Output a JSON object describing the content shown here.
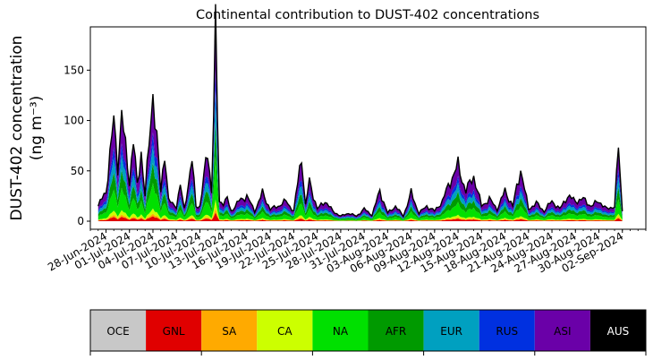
{
  "chart_data": {
    "type": "area",
    "title": "Continental contribution to DUST-402 concentrations",
    "ylabel_line1": "DUST-402 concentration",
    "ylabel_line2": "(ng m⁻³)",
    "xlabel": "",
    "x_start": "2024-06-27",
    "x_end": "2024-09-02",
    "xlim": [
      "2024-06-26",
      "2024-09-05"
    ],
    "ylim": [
      -8,
      193
    ],
    "yticks": [
      0,
      50,
      100,
      150
    ],
    "xtick_labels": [
      "28-Jun-2024",
      "01-Jul-2024",
      "04-Jul-2024",
      "07-Jul-2024",
      "10-Jul-2024",
      "13-Jul-2024",
      "16-Jul-2024",
      "19-Jul-2024",
      "22-Jul-2024",
      "25-Jul-2024",
      "28-Jul-2024",
      "31-Jul-2024",
      "03-Aug-2024",
      "06-Aug-2024",
      "09-Aug-2024",
      "12-Aug-2024",
      "15-Aug-2024",
      "18-Aug-2024",
      "21-Aug-2024",
      "24-Aug-2024",
      "27-Aug-2024",
      "30-Aug-2024",
      "02-Sep-2024"
    ],
    "total_profile": [
      [
        "2024-06-27",
        15
      ],
      [
        "2024-06-28",
        30
      ],
      [
        "2024-06-29",
        100
      ],
      [
        "2024-06-29T12",
        55
      ],
      [
        "2024-06-30",
        105
      ],
      [
        "2024-07-01",
        40
      ],
      [
        "2024-07-01T12",
        80
      ],
      [
        "2024-07-02",
        35
      ],
      [
        "2024-07-02T12",
        70
      ],
      [
        "2024-07-03",
        25
      ],
      [
        "2024-07-04",
        130
      ],
      [
        "2024-07-05",
        30
      ],
      [
        "2024-07-05T12",
        70
      ],
      [
        "2024-07-06",
        20
      ],
      [
        "2024-07-07",
        15
      ],
      [
        "2024-07-07T12",
        35
      ],
      [
        "2024-07-08",
        12
      ],
      [
        "2024-07-09",
        60
      ],
      [
        "2024-07-09T12",
        15
      ],
      [
        "2024-07-10",
        15
      ],
      [
        "2024-07-11",
        70
      ],
      [
        "2024-07-11T12",
        30
      ],
      [
        "2024-07-12",
        183
      ],
      [
        "2024-07-12T12",
        20
      ],
      [
        "2024-07-13",
        18
      ],
      [
        "2024-07-13T12",
        22
      ],
      [
        "2024-07-14",
        10
      ],
      [
        "2024-07-15",
        20
      ],
      [
        "2024-07-16",
        25
      ],
      [
        "2024-07-17",
        10
      ],
      [
        "2024-07-18",
        28
      ],
      [
        "2024-07-19",
        12
      ],
      [
        "2024-07-20",
        15
      ],
      [
        "2024-07-21",
        20
      ],
      [
        "2024-07-22",
        10
      ],
      [
        "2024-07-23",
        66
      ],
      [
        "2024-07-23T12",
        15
      ],
      [
        "2024-07-24",
        40
      ],
      [
        "2024-07-25",
        12
      ],
      [
        "2024-07-26",
        20
      ],
      [
        "2024-07-27",
        10
      ],
      [
        "2024-07-28",
        5
      ],
      [
        "2024-07-29",
        8
      ],
      [
        "2024-07-30",
        5
      ],
      [
        "2024-07-31",
        12
      ],
      [
        "2024-08-01",
        6
      ],
      [
        "2024-08-02",
        30
      ],
      [
        "2024-08-03",
        8
      ],
      [
        "2024-08-04",
        15
      ],
      [
        "2024-08-05",
        5
      ],
      [
        "2024-08-06",
        28
      ],
      [
        "2024-08-07",
        8
      ],
      [
        "2024-08-08",
        15
      ],
      [
        "2024-08-09",
        10
      ],
      [
        "2024-08-10",
        20
      ],
      [
        "2024-08-11",
        40
      ],
      [
        "2024-08-12",
        55
      ],
      [
        "2024-08-13",
        30
      ],
      [
        "2024-08-14",
        45
      ],
      [
        "2024-08-15",
        15
      ],
      [
        "2024-08-16",
        22
      ],
      [
        "2024-08-17",
        12
      ],
      [
        "2024-08-18",
        30
      ],
      [
        "2024-08-19",
        15
      ],
      [
        "2024-08-20",
        52
      ],
      [
        "2024-08-21",
        12
      ],
      [
        "2024-08-22",
        18
      ],
      [
        "2024-08-23",
        10
      ],
      [
        "2024-08-24",
        20
      ],
      [
        "2024-08-25",
        12
      ],
      [
        "2024-08-26",
        25
      ],
      [
        "2024-08-27",
        20
      ],
      [
        "2024-08-28",
        22
      ],
      [
        "2024-08-29",
        15
      ],
      [
        "2024-08-30",
        20
      ],
      [
        "2024-08-31",
        12
      ],
      [
        "2024-09-01",
        15
      ],
      [
        "2024-09-01T12",
        72
      ],
      [
        "2024-09-02",
        10
      ]
    ],
    "series": [
      {
        "name": "OCE",
        "color": "#c8c8c8",
        "fraction": 0.0
      },
      {
        "name": "GNL",
        "color": "#e00000",
        "fraction": 0.04
      },
      {
        "name": "SA",
        "color": "#ffaa00",
        "fraction": 0.02
      },
      {
        "name": "CA",
        "color": "#ccff00",
        "fraction": 0.04
      },
      {
        "name": "NA",
        "color": "#00e000",
        "fraction": 0.2
      },
      {
        "name": "AFR",
        "color": "#009a00",
        "fraction": 0.16
      },
      {
        "name": "EUR",
        "color": "#00a0c0",
        "fraction": 0.14
      },
      {
        "name": "RUS",
        "color": "#0030e0",
        "fraction": 0.1
      },
      {
        "name": "ASI",
        "color": "#6a00a8",
        "fraction": 0.3
      },
      {
        "name": "AUS",
        "color": "#000000",
        "fraction": 0.0
      }
    ],
    "legend_position": "bottom"
  }
}
